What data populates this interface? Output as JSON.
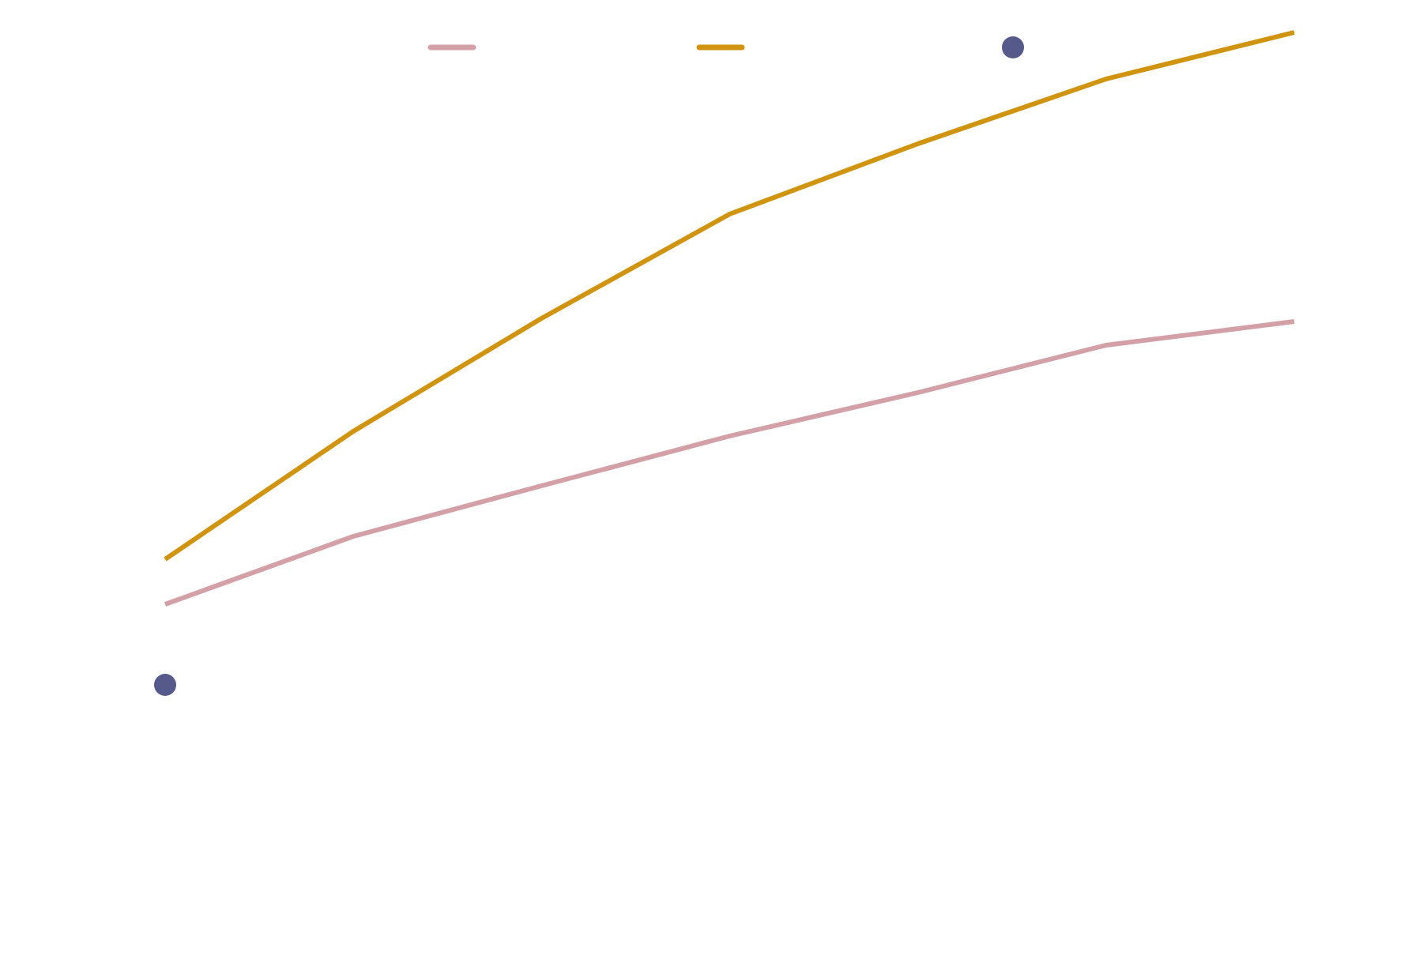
{
  "chart_data": {
    "type": "line",
    "title": "",
    "xlabel": "",
    "ylabel": "",
    "x": [
      0,
      1,
      2,
      3,
      4,
      5,
      6
    ],
    "xlim": [
      0,
      6
    ],
    "ylim": [
      0,
      1
    ],
    "grid": false,
    "legend_position": "top",
    "series": [
      {
        "kind": "line",
        "color": "#D4A0A8",
        "values": [
          0.352,
          0.438,
          0.502,
          0.565,
          0.62,
          0.68,
          0.71
        ]
      },
      {
        "kind": "line",
        "color": "#D09410",
        "values": [
          0.409,
          0.571,
          0.714,
          0.846,
          0.935,
          1.017,
          1.076
        ]
      },
      {
        "kind": "point",
        "color": "#555A8A",
        "values": [
          0.25,
          null,
          null,
          null,
          null,
          null,
          null
        ]
      }
    ]
  }
}
